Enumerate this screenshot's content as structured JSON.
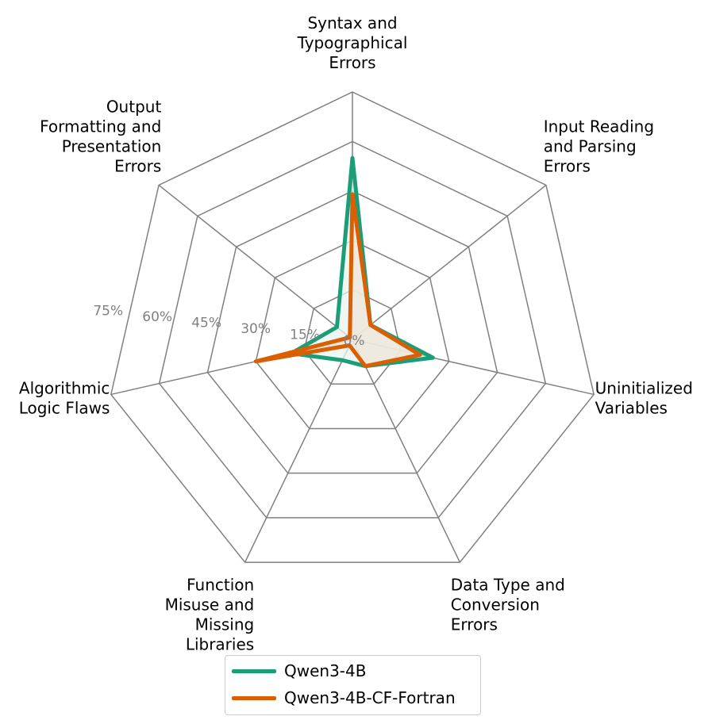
{
  "chart_data": {
    "type": "radar",
    "axes": [
      "Syntax and Typographical Errors",
      "Input Reading and Parsing Errors",
      "Uninitialized Variables",
      "Data Type and Conversion Errors",
      "Function Misuse and Missing Libraries",
      "Algorithmic Logic Flaws",
      "Output Formatting and Presentation Errors"
    ],
    "axis_label_lines": [
      [
        "Syntax and",
        "Typographical",
        "Errors"
      ],
      [
        "Input Reading",
        "and Parsing",
        "Errors"
      ],
      [
        "Uninitialized",
        "Variables"
      ],
      [
        "Data Type and",
        "Conversion",
        "Errors"
      ],
      [
        "Function",
        "Misuse and",
        "Missing",
        "Libraries"
      ],
      [
        "Algorithmic",
        "Logic Flaws"
      ],
      [
        "Output",
        "Formatting and",
        "Presentation",
        "Errors"
      ]
    ],
    "radial_ticks": [
      0,
      15,
      30,
      45,
      60,
      75
    ],
    "radial_tick_labels": [
      "0%",
      "15%",
      "30%",
      "45%",
      "60%",
      "75%"
    ],
    "rmax": 75,
    "series": [
      {
        "name": "Qwen3-4B",
        "color": "#1b9e77",
        "fill": "#e8f4f0",
        "values": [
          55,
          7,
          25,
          9,
          7,
          19,
          6
        ]
      },
      {
        "name": "Qwen3-4B-CF-Fortran",
        "color": "#d95f02",
        "fill": "#ede5d8",
        "values": [
          44,
          7,
          21,
          9,
          2,
          30,
          1
        ]
      }
    ]
  }
}
